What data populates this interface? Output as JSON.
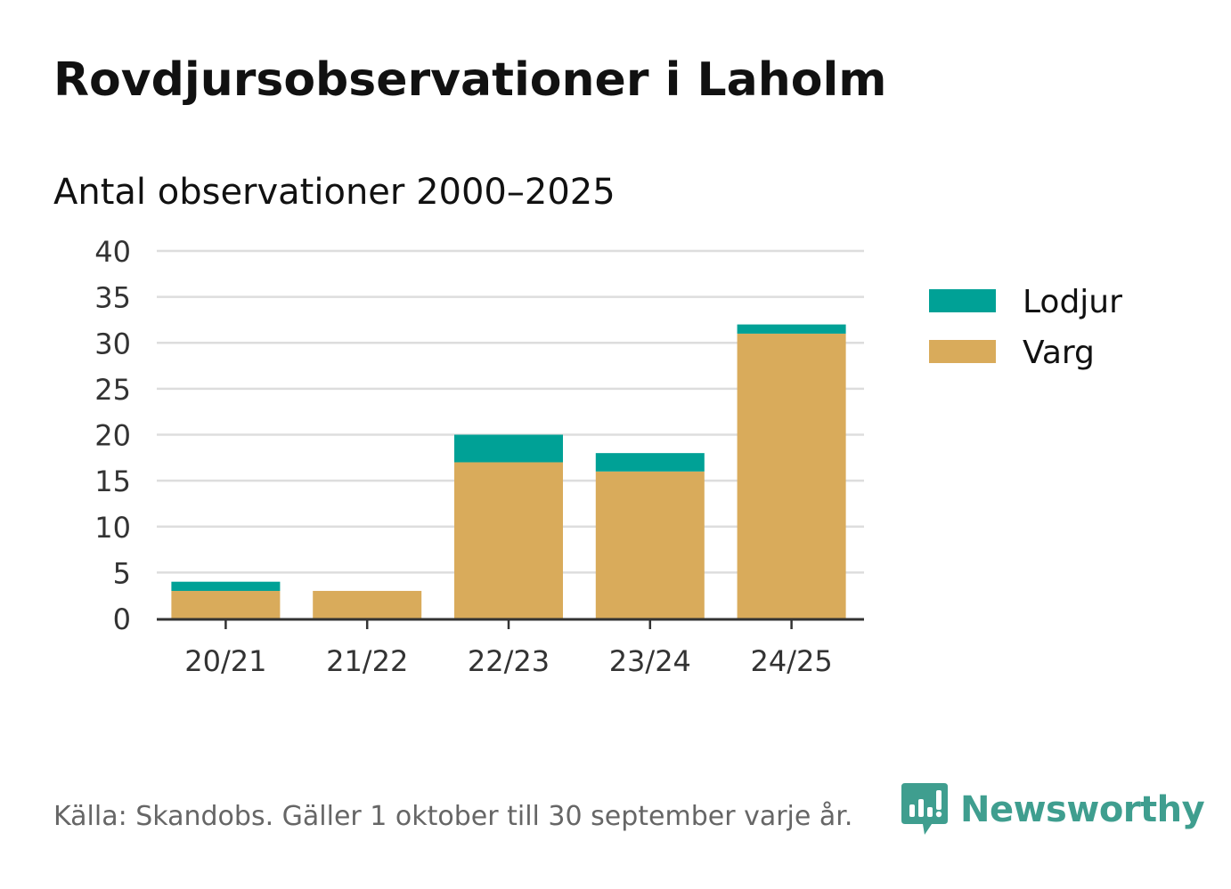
{
  "title": "Rovdjursobservationer i Laholm",
  "subtitle": "Antal observationer 2000–2025",
  "source": "Källa: Skandobs. Gäller 1 oktober till 30 september varje år.",
  "brand": {
    "name": "Newsworthy",
    "icon": "newsworthy-logo-icon",
    "color": "#3f9e8f"
  },
  "colors": {
    "lodjur": "#00a196",
    "varg": "#d9ab5b",
    "grid": "#dddddd",
    "axis": "#333333",
    "text": "#333333"
  },
  "chart_data": {
    "type": "bar",
    "stacked": true,
    "title": "Rovdjursobservationer i Laholm",
    "subtitle": "Antal observationer 2000–2025",
    "xlabel": "",
    "ylabel": "",
    "categories": [
      "20/21",
      "21/22",
      "22/23",
      "23/24",
      "24/25"
    ],
    "series": [
      {
        "name": "Varg",
        "color": "#d9ab5b",
        "values": [
          3,
          3,
          17,
          16,
          31
        ]
      },
      {
        "name": "Lodjur",
        "color": "#00a196",
        "values": [
          1,
          0,
          3,
          2,
          1
        ]
      }
    ],
    "legend": [
      "Lodjur",
      "Varg"
    ],
    "legend_position": "right",
    "ylim": [
      0,
      40
    ],
    "yticks": [
      0,
      5,
      10,
      15,
      20,
      25,
      30,
      35,
      40
    ],
    "grid": true
  }
}
